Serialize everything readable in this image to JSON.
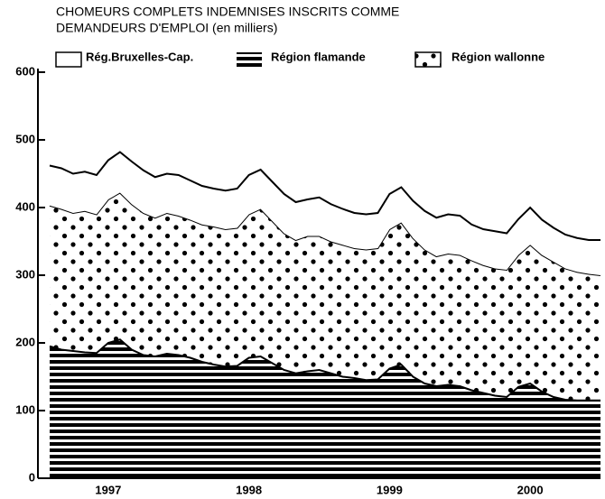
{
  "chart_data": {
    "type": "stacked_area",
    "title_lines": [
      "CHOMEURS COMPLETS INDEMNISES INSCRITS COMME",
      "DEMANDEURS D'EMPLOI (en milliers)"
    ],
    "categories": [
      null,
      null,
      null,
      null,
      null,
      "1997",
      null,
      null,
      null,
      null,
      null,
      null,
      null,
      null,
      null,
      null,
      null,
      "1998",
      null,
      null,
      null,
      null,
      null,
      null,
      null,
      null,
      null,
      null,
      null,
      "1999",
      null,
      null,
      null,
      null,
      null,
      null,
      null,
      null,
      null,
      null,
      null,
      "2000",
      null,
      null,
      null,
      null,
      null,
      null
    ],
    "series": [
      {
        "name": "Région flamande",
        "color": "#000000",
        "values": [
          195,
          190,
          188,
          186,
          185,
          200,
          205,
          190,
          182,
          180,
          184,
          182,
          178,
          172,
          168,
          165,
          166,
          178,
          180,
          170,
          160,
          155,
          158,
          160,
          155,
          150,
          148,
          145,
          146,
          162,
          168,
          150,
          140,
          136,
          138,
          136,
          130,
          126,
          122,
          120,
          135,
          140,
          128,
          120,
          116,
          115,
          115,
          115
        ]
      },
      {
        "name": "Région wallonne",
        "color": "#000000",
        "values": [
          208,
          208,
          204,
          209,
          205,
          212,
          217,
          215,
          210,
          205,
          208,
          206,
          204,
          203,
          204,
          203,
          204,
          212,
          218,
          210,
          202,
          197,
          200,
          198,
          195,
          195,
          192,
          193,
          194,
          206,
          210,
          205,
          198,
          192,
          194,
          194,
          192,
          189,
          188,
          188,
          195,
          205,
          202,
          200,
          194,
          190,
          187,
          185
        ]
      },
      {
        "name": "Rég.Bruxelles-Cap.",
        "color": "#000000",
        "values": [
          59,
          60,
          58,
          58,
          58,
          58,
          60,
          63,
          63,
          60,
          58,
          60,
          58,
          57,
          56,
          57,
          58,
          58,
          58,
          58,
          58,
          56,
          54,
          57,
          55,
          53,
          52,
          52,
          52,
          52,
          52,
          55,
          57,
          57,
          58,
          58,
          53,
          53,
          55,
          54,
          53,
          55,
          52,
          50,
          50,
          50,
          50,
          52
        ]
      }
    ],
    "ylim": [
      0,
      600
    ],
    "yticks": [
      0,
      100,
      200,
      300,
      400,
      500,
      600
    ]
  }
}
